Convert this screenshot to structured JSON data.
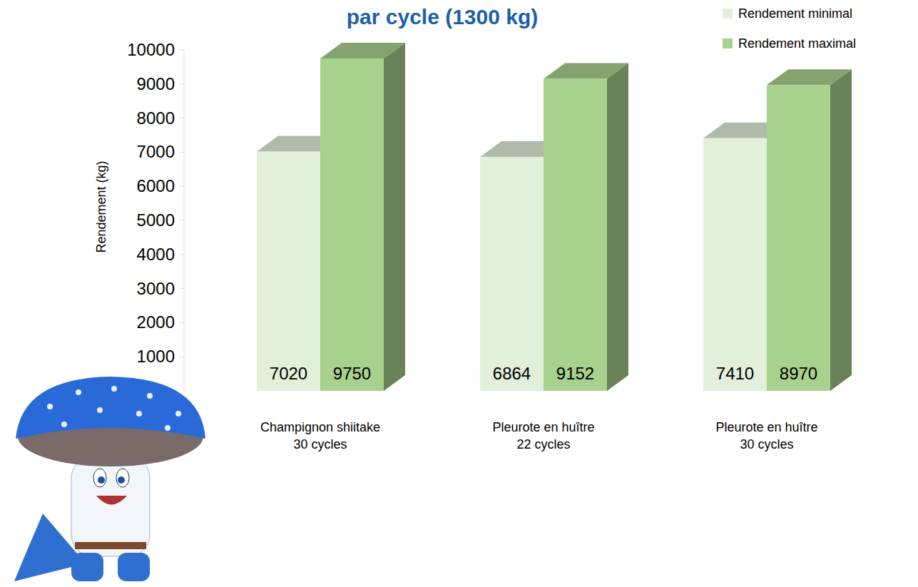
{
  "chart_data": {
    "type": "bar",
    "title": "par cycle (1300 kg)",
    "y_label": "Rendement (kg)",
    "categories": [
      "Champignon shiitake\n30 cycles",
      "Pleurote en huître\n22 cycles",
      "Pleurote en huître\n30 cycles"
    ],
    "series": [
      {
        "name": "Rendement minimal",
        "color": "#e2efda",
        "values": [
          7020,
          6864,
          7410
        ]
      },
      {
        "name": "Rendement maximal",
        "color": "#a9d18e",
        "values": [
          9750,
          9152,
          8970
        ]
      }
    ],
    "ylim": [
      0,
      10000
    ],
    "yticks": [
      1000,
      2000,
      3000,
      4000,
      5000,
      6000,
      7000,
      8000,
      9000,
      10000
    ],
    "grid": false,
    "legend": "top-right",
    "data_labels": true
  }
}
